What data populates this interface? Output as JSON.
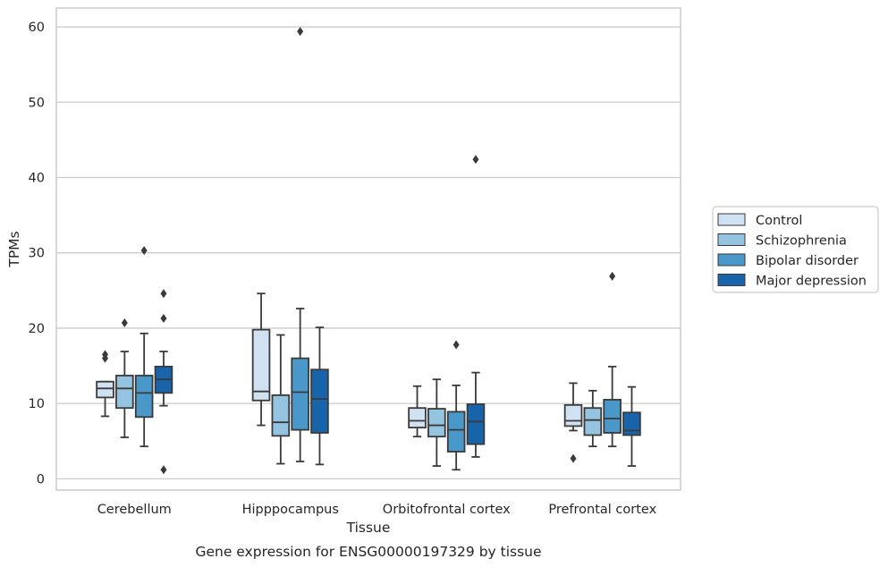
{
  "chart_data": {
    "type": "boxplot",
    "xlabel": "Tissue",
    "ylabel": "TPMs",
    "caption": "Gene expression for ENSG00000197329 by tissue",
    "ylim": [
      -1.5,
      62.5
    ],
    "yticks": [
      0,
      10,
      20,
      30,
      40,
      50,
      60
    ],
    "grid": "horizontal",
    "legend_position": "right",
    "categories": [
      "Cerebellum",
      "Hipppocampus",
      "Orbitofrontal cortex",
      "Prefrontal cortex"
    ],
    "series": [
      {
        "name": "Control",
        "color": "#d0e1f2",
        "boxes": [
          {
            "whislo": 8.3,
            "q1": 10.8,
            "med": 12.0,
            "q3": 12.9,
            "whishi": 12.9,
            "fliers": [
              16.0,
              16.5
            ]
          },
          {
            "whislo": 7.1,
            "q1": 10.4,
            "med": 11.6,
            "q3": 19.8,
            "whishi": 24.6,
            "fliers": []
          },
          {
            "whislo": 5.6,
            "q1": 6.8,
            "med": 7.7,
            "q3": 9.4,
            "whishi": 12.3,
            "fliers": []
          },
          {
            "whislo": 6.4,
            "q1": 7.0,
            "med": 7.7,
            "q3": 9.8,
            "whishi": 12.7,
            "fliers": [
              2.7
            ]
          }
        ]
      },
      {
        "name": "Schizophrenia",
        "color": "#94c4df",
        "boxes": [
          {
            "whislo": 5.5,
            "q1": 9.4,
            "med": 12.0,
            "q3": 13.7,
            "whishi": 16.9,
            "fliers": [
              20.7
            ]
          },
          {
            "whislo": 2.0,
            "q1": 5.7,
            "med": 7.5,
            "q3": 11.1,
            "whishi": 19.1,
            "fliers": []
          },
          {
            "whislo": 1.7,
            "q1": 5.6,
            "med": 7.1,
            "q3": 9.3,
            "whishi": 13.2,
            "fliers": []
          },
          {
            "whislo": 4.3,
            "q1": 5.8,
            "med": 7.8,
            "q3": 9.4,
            "whishi": 11.7,
            "fliers": []
          }
        ]
      },
      {
        "name": "Bipolar disorder",
        "color": "#4a98c9",
        "boxes": [
          {
            "whislo": 4.3,
            "q1": 8.2,
            "med": 11.4,
            "q3": 13.7,
            "whishi": 19.3,
            "fliers": [
              30.3
            ]
          },
          {
            "whislo": 2.3,
            "q1": 6.5,
            "med": 11.5,
            "q3": 16.0,
            "whishi": 22.6,
            "fliers": [
              59.4
            ]
          },
          {
            "whislo": 1.2,
            "q1": 3.6,
            "med": 6.5,
            "q3": 8.9,
            "whishi": 12.4,
            "fliers": [
              17.8
            ]
          },
          {
            "whislo": 4.3,
            "q1": 6.1,
            "med": 8.0,
            "q3": 10.5,
            "whishi": 14.9,
            "fliers": [
              26.9
            ]
          }
        ]
      },
      {
        "name": "Major depression",
        "color": "#1764ab",
        "boxes": [
          {
            "whislo": 9.7,
            "q1": 11.4,
            "med": 13.2,
            "q3": 14.9,
            "whishi": 16.9,
            "fliers": [
              21.3,
              24.6,
              1.2
            ]
          },
          {
            "whislo": 1.9,
            "q1": 6.1,
            "med": 10.6,
            "q3": 14.5,
            "whishi": 20.1,
            "fliers": []
          },
          {
            "whislo": 2.9,
            "q1": 4.6,
            "med": 7.6,
            "q3": 9.9,
            "whishi": 14.1,
            "fliers": [
              42.4
            ]
          },
          {
            "whislo": 1.7,
            "q1": 5.8,
            "med": 6.4,
            "q3": 8.8,
            "whishi": 12.2,
            "fliers": []
          }
        ]
      }
    ]
  }
}
